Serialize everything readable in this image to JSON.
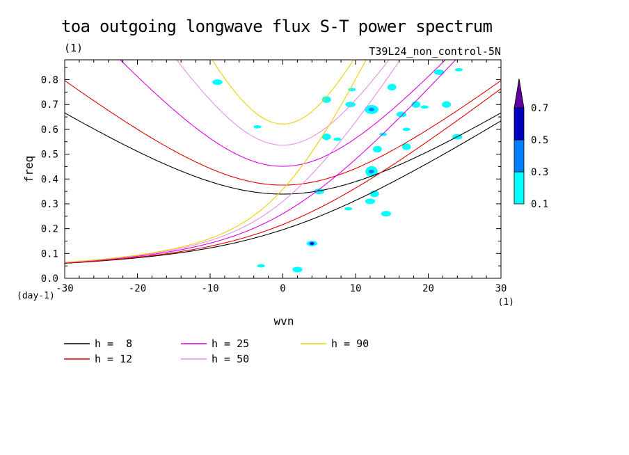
{
  "chart_data": {
    "type": "line",
    "title": "toa outgoing longwave flux S-T power spectrum",
    "subtitle_left": "(1)",
    "subtitle_right": "T39L24_non_control-5N",
    "xlabel": "wvn",
    "ylabel": "freq",
    "x_unit": "(1)",
    "y_unit": "(day-1)",
    "xlim": [
      -30,
      30
    ],
    "ylim": [
      0,
      0.88
    ],
    "xticks": [
      -30,
      -20,
      -10,
      0,
      10,
      20,
      30
    ],
    "xtick_labels": [
      "-30",
      "-20",
      "-10",
      "0",
      "10",
      "20",
      "30"
    ],
    "yticks": [
      0,
      0.1,
      0.2,
      0.3,
      0.4,
      0.5,
      0.6,
      0.7,
      0.8
    ],
    "ytick_labels": [
      "0.0",
      "0.1",
      "0.2",
      "0.3",
      "0.4",
      "0.5",
      "0.6",
      "0.7",
      "0.8"
    ],
    "series": [
      {
        "name": "h =  8",
        "color": "#000000",
        "family": "eig",
        "h": 8
      },
      {
        "name": "h = 12",
        "color": "#e00000",
        "family": "eig",
        "h": 12
      },
      {
        "name": "h = 25",
        "color": "#e000e0",
        "family": "eig",
        "h": 25
      },
      {
        "name": "h = 50",
        "color": "#e890e8",
        "family": "eig",
        "h": 50
      },
      {
        "name": "h = 90",
        "color": "#f0d000",
        "family": "eig",
        "h": 90
      }
    ],
    "colorbar": {
      "levels": [
        "0.1",
        "0.3",
        "0.5",
        "0.7"
      ],
      "colors": [
        "#00ffff",
        "#0080ff",
        "#0000c0",
        "#6000a0"
      ]
    },
    "contour_patches": [
      {
        "x": 4.0,
        "y": 0.14,
        "level": 3
      },
      {
        "x": 12.2,
        "y": 0.68,
        "level": 2
      },
      {
        "x": 12.2,
        "y": 0.43,
        "level": 2
      },
      {
        "x": 24.2,
        "y": 0.84,
        "level": 1
      },
      {
        "x": 16.3,
        "y": 0.66,
        "level": 1
      },
      {
        "x": 18.3,
        "y": 0.7,
        "level": 1
      },
      {
        "x": 19.5,
        "y": 0.69,
        "level": 1
      },
      {
        "x": 9.3,
        "y": 0.7,
        "level": 1
      },
      {
        "x": 15.0,
        "y": 0.77,
        "level": 1
      },
      {
        "x": 17.0,
        "y": 0.6,
        "level": 1
      },
      {
        "x": 12.0,
        "y": 0.31,
        "level": 1
      },
      {
        "x": 12.6,
        "y": 0.34,
        "level": 1
      },
      {
        "x": -3.0,
        "y": 0.05,
        "level": 1
      },
      {
        "x": 2.0,
        "y": 0.035,
        "level": 1
      },
      {
        "x": 6.0,
        "y": 0.57,
        "level": 1
      },
      {
        "x": 7.5,
        "y": 0.56,
        "level": 1
      },
      {
        "x": 5.0,
        "y": 0.35,
        "level": 1
      },
      {
        "x": 13.0,
        "y": 0.52,
        "level": 1
      },
      {
        "x": 9.5,
        "y": 0.76,
        "level": 1
      },
      {
        "x": 21.5,
        "y": 0.83,
        "level": 1
      },
      {
        "x": 17.0,
        "y": 0.53,
        "level": 1
      },
      {
        "x": -3.5,
        "y": 0.61,
        "level": 1
      },
      {
        "x": -9.0,
        "y": 0.79,
        "level": 1
      },
      {
        "x": 6.0,
        "y": 0.72,
        "level": 1
      },
      {
        "x": 13.8,
        "y": 0.58,
        "level": 1
      },
      {
        "x": 24.0,
        "y": 0.57,
        "level": 1
      },
      {
        "x": 22.5,
        "y": 0.7,
        "level": 1
      },
      {
        "x": 9.0,
        "y": 0.28,
        "level": 1
      },
      {
        "x": 14.2,
        "y": 0.26,
        "level": 1
      }
    ]
  }
}
